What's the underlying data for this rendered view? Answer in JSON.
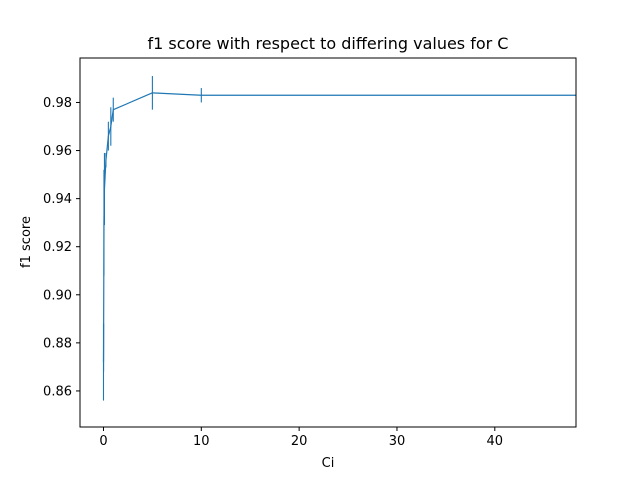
{
  "chart_data": {
    "type": "line",
    "title": "f1 score with respect to differing values for C",
    "xlabel": "Ci",
    "ylabel": "f1 score",
    "xlim": [
      -2.4,
      48.3
    ],
    "ylim": [
      0.845,
      0.9985
    ],
    "xticks": [
      0,
      10,
      20,
      30,
      40
    ],
    "xtick_labels": [
      "0",
      "10",
      "20",
      "30",
      "40"
    ],
    "yticks": [
      0.86,
      0.88,
      0.9,
      0.92,
      0.94,
      0.96,
      0.98
    ],
    "ytick_labels": [
      "0.86",
      "0.88",
      "0.90",
      "0.92",
      "0.94",
      "0.96",
      "0.98"
    ],
    "grid": false,
    "legend": "none",
    "series": [
      {
        "color": "#1f77b4",
        "points": [
          {
            "x": 0.001,
            "y": 0.872,
            "err": 0.016
          },
          {
            "x": 0.01,
            "y": 0.878,
            "err": 0.01
          },
          {
            "x": 0.05,
            "y": 0.93,
            "err": 0.022
          },
          {
            "x": 0.1,
            "y": 0.944,
            "err": 0.015
          },
          {
            "x": 0.25,
            "y": 0.956,
            "err": 0.003
          },
          {
            "x": 0.5,
            "y": 0.966,
            "err": 0.006
          },
          {
            "x": 0.75,
            "y": 0.97,
            "err": 0.008
          },
          {
            "x": 1.0,
            "y": 0.977,
            "err": 0.005
          },
          {
            "x": 5.0,
            "y": 0.984,
            "err": 0.007
          },
          {
            "x": 10.0,
            "y": 0.983,
            "err": 0.003
          },
          {
            "x": 50.0,
            "y": 0.983,
            "err": 0.0
          }
        ]
      }
    ]
  }
}
